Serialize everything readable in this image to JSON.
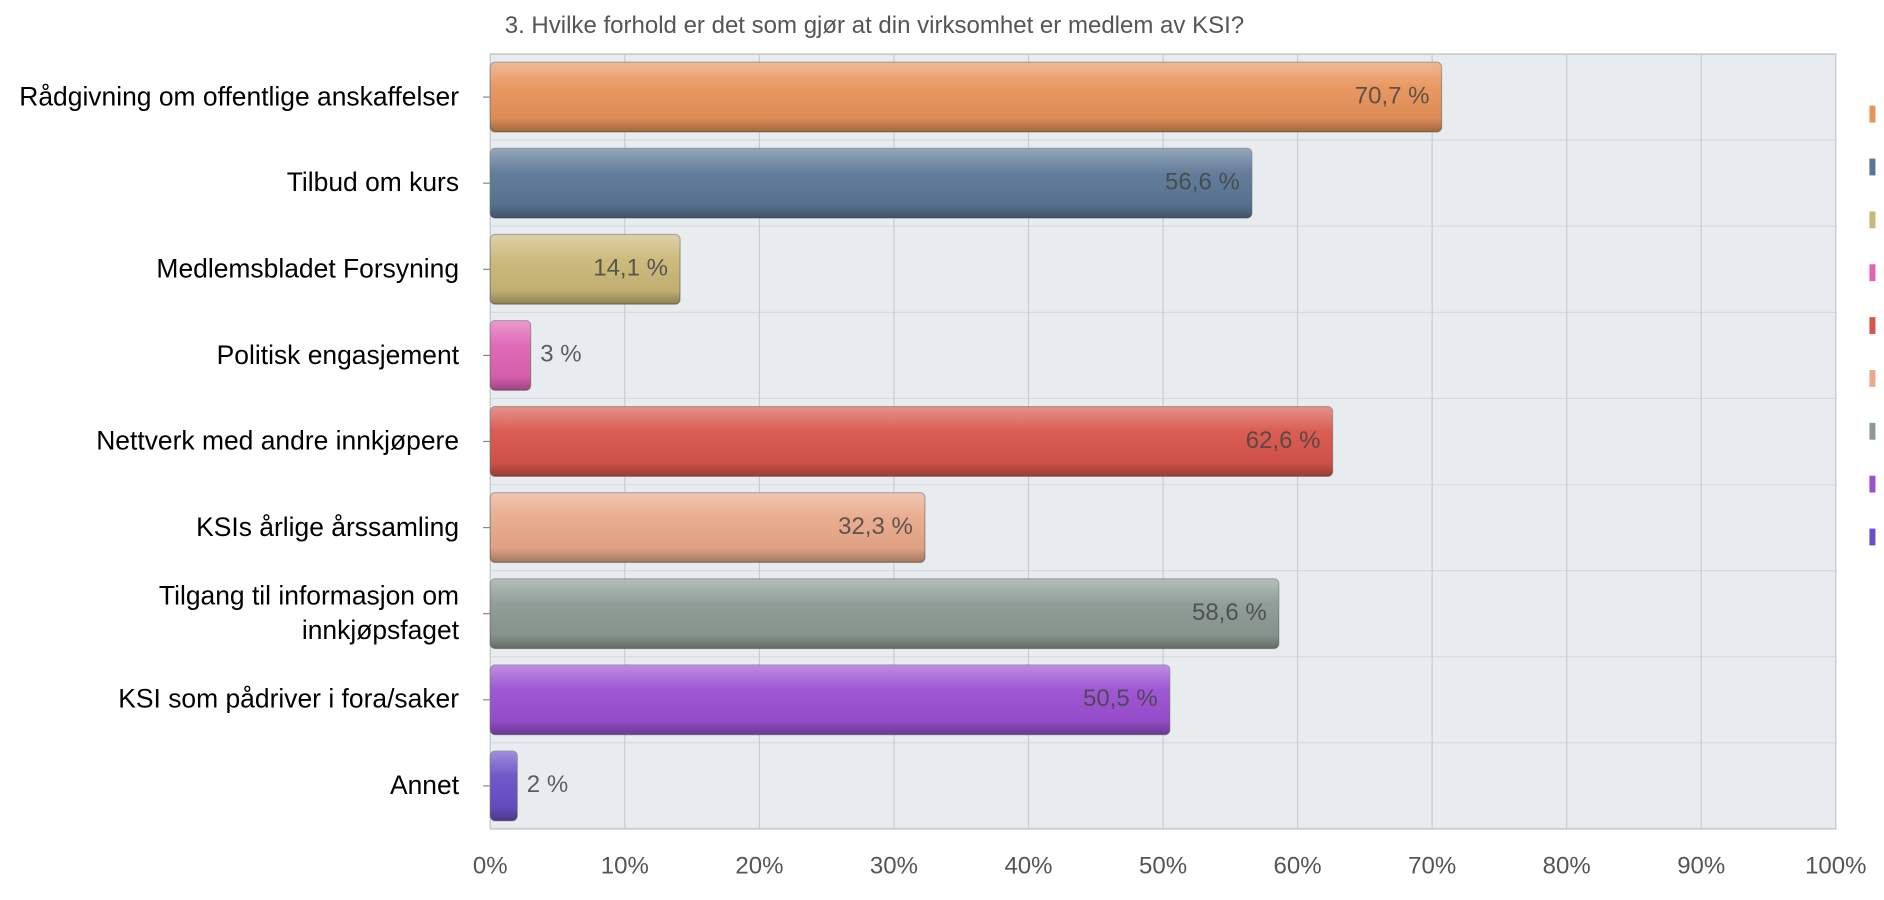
{
  "chart_data": {
    "type": "hbar",
    "title": "3. Hvilke forhold er det som gjør at din virksomhet er medlem av KSI?",
    "categories": [
      "Rådgivning om offentlige anskaffelser",
      "Tilbud om kurs",
      "Medlemsbladet Forsyning",
      "Politisk engasjement",
      "Nettverk med andre innkjøpere",
      "KSIs årlige årssamling",
      "Tilgang til informasjon om innkjøpsfaget",
      "KSI som pådriver i fora/saker",
      "Annet"
    ],
    "values": [
      70.7,
      56.6,
      14.1,
      3,
      62.6,
      32.3,
      58.6,
      50.5,
      2
    ],
    "value_labels": [
      "70,7 %",
      "56,6 %",
      "14,1 %",
      "3 %",
      "62,6 %",
      "32,3 %",
      "58,6 %",
      "50,5 %",
      "2 %"
    ],
    "colors": [
      "#e8935a",
      "#5b7796",
      "#cbb878",
      "#e063b4",
      "#d9554b",
      "#e9a98a",
      "#8c9a94",
      "#9b4fd2",
      "#6a50c8"
    ],
    "xlim": [
      0,
      100
    ],
    "xticks": [
      {
        "value": 0,
        "label": "0%"
      },
      {
        "value": 10,
        "label": "10%"
      },
      {
        "value": 20,
        "label": "20%"
      },
      {
        "value": 30,
        "label": "30%"
      },
      {
        "value": 40,
        "label": "40%"
      },
      {
        "value": 50,
        "label": "50%"
      },
      {
        "value": 60,
        "label": "60%"
      },
      {
        "value": 70,
        "label": "70%"
      },
      {
        "value": 80,
        "label": "80%"
      },
      {
        "value": 90,
        "label": "90%"
      },
      {
        "value": 100,
        "label": "100%"
      }
    ],
    "grid": true
  }
}
